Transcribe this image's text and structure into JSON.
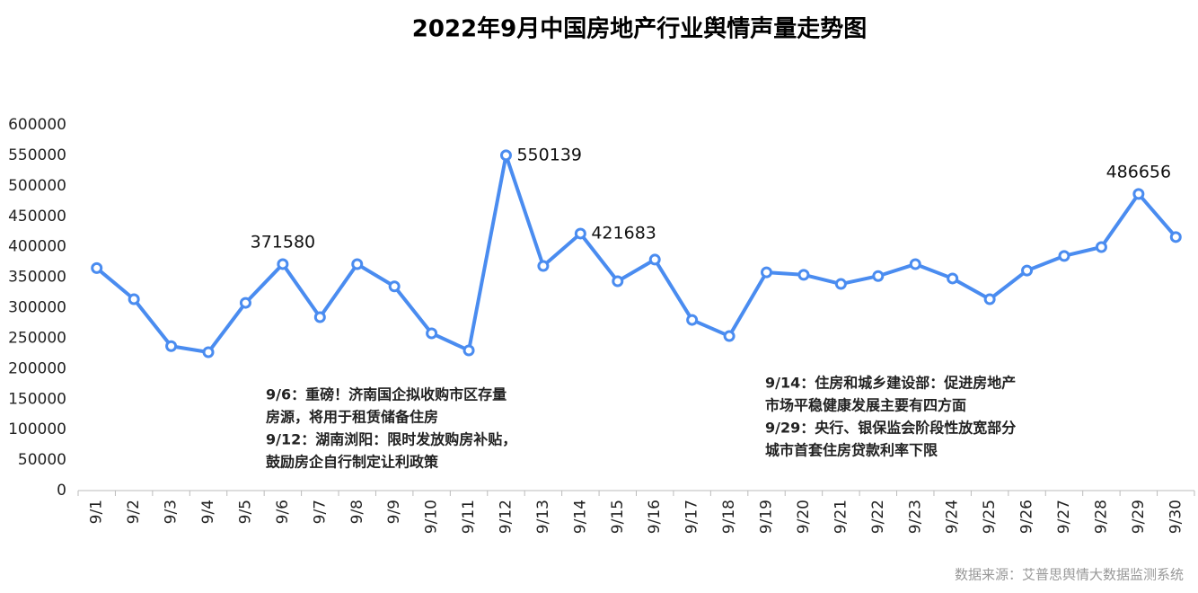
{
  "chart_data": {
    "type": "line",
    "title": "2022年9月中国房地产行业舆情声量走势图",
    "categories": [
      "9/1",
      "9/2",
      "9/3",
      "9/4",
      "9/5",
      "9/6",
      "9/7",
      "9/8",
      "9/9",
      "9/10",
      "9/11",
      "9/12",
      "9/13",
      "9/14",
      "9/15",
      "9/16",
      "9/17",
      "9/18",
      "9/19",
      "9/20",
      "9/21",
      "9/22",
      "9/23",
      "9/24",
      "9/25",
      "9/26",
      "9/27",
      "9/28",
      "9/29",
      "9/30"
    ],
    "series": [
      {
        "name": "舆情声量",
        "color": "#4a8cf0",
        "values": [
          365000,
          314000,
          237000,
          227000,
          308000,
          371580,
          284500,
          371500,
          335000,
          258000,
          230000,
          550139,
          368500,
          421683,
          343500,
          379000,
          280000,
          253500,
          358000,
          354000,
          339000,
          352000,
          371500,
          348000,
          314000,
          361000,
          385000,
          399500,
          486656,
          416000
        ],
        "value_labels": [
          null,
          null,
          null,
          null,
          null,
          "371580",
          null,
          null,
          null,
          null,
          null,
          "550139",
          null,
          "421683",
          null,
          null,
          null,
          null,
          null,
          null,
          null,
          null,
          null,
          null,
          null,
          null,
          null,
          null,
          "486656",
          null
        ]
      }
    ],
    "ylim": [
      0,
      600000
    ],
    "yticks": [
      0,
      50000,
      100000,
      150000,
      200000,
      250000,
      300000,
      350000,
      400000,
      450000,
      500000,
      550000,
      600000
    ],
    "grid": false,
    "annotations": [
      {
        "color": "#3ecf9a",
        "lines": [
          "9/6：重磅！济南国企拟收购市区存量",
          "房源，将用于租赁储备住房",
          "9/12：湖南浏阳：限时发放购房补贴，",
          "鼓励房企自行制定让利政策"
        ]
      },
      {
        "color": "#3ecf9a",
        "lines": [
          "9/14：住房和城乡建设部：促进房地产",
          "市场平稳健康发展主要有四方面",
          "9/29：央行、银保监会阶段性放宽部分",
          "城市首套住房贷款利率下限"
        ]
      }
    ],
    "source": "数据来源：艾普思舆情大数据监测系统"
  }
}
